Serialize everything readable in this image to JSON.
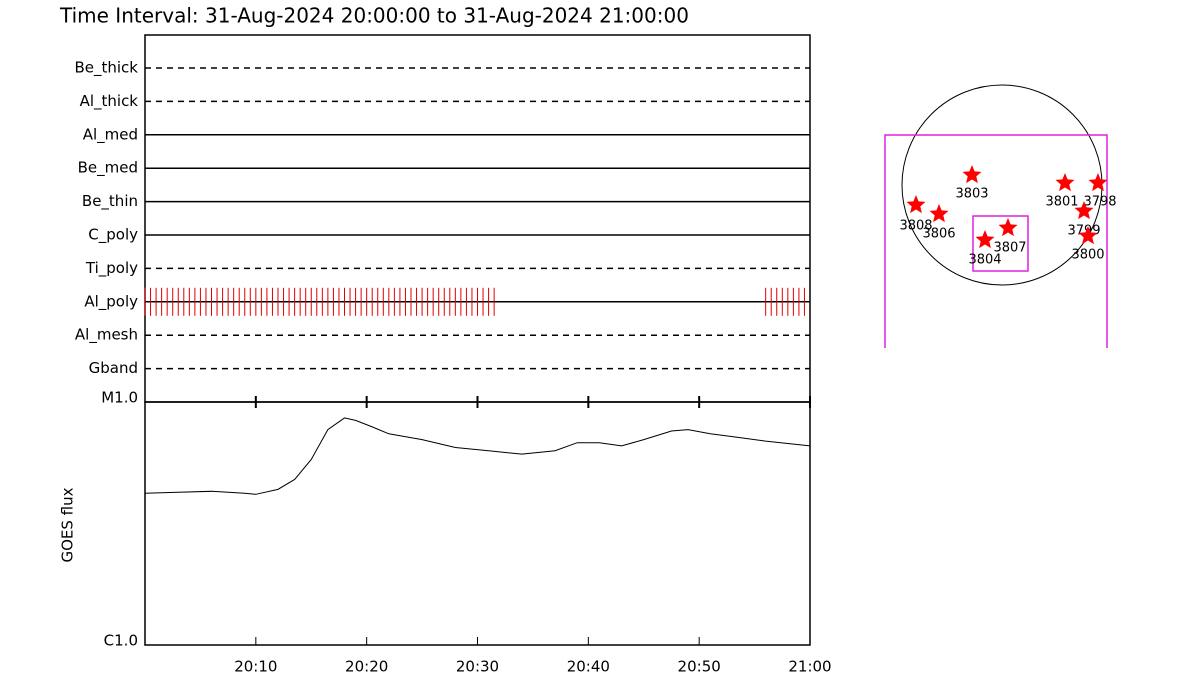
{
  "chart_data": [
    {
      "type": "timeline",
      "title": "Time Interval: 31-Aug-2024 20:00:00 to 31-Aug-2024 21:00:00",
      "categories": [
        "Be_thick",
        "Al_thick",
        "Al_med",
        "Be_med",
        "Be_thin",
        "C_poly",
        "Ti_poly",
        "Al_poly",
        "Al_mesh",
        "Gband"
      ],
      "line_styles": [
        "dashed",
        "dashed",
        "solid",
        "solid",
        "solid",
        "solid",
        "dashed",
        "solid",
        "dashed",
        "dashed"
      ],
      "color": "#e00000",
      "xlim": [
        0,
        60
      ],
      "observations": [
        [],
        [],
        [],
        [],
        [],
        [],
        [],
        [
          0,
          0.5,
          1,
          1.5,
          2,
          2.5,
          3,
          3.5,
          4,
          4.5,
          5,
          5.5,
          6,
          6.5,
          7,
          7.5,
          8,
          8.5,
          9,
          9.5,
          10,
          10.5,
          11,
          11.5,
          12,
          12.5,
          13,
          13.5,
          14,
          14.5,
          15,
          15.5,
          16,
          16.5,
          17,
          17.5,
          18,
          18.5,
          19,
          19.5,
          20,
          20.5,
          21,
          21.5,
          22,
          22.5,
          23,
          23.5,
          24,
          24.5,
          25,
          25.5,
          26,
          26.5,
          27,
          27.5,
          28,
          28.5,
          29,
          29.5,
          30,
          30.5,
          31,
          31.5,
          56,
          56.5,
          57,
          57.5,
          58,
          58.5,
          59,
          59.5
        ],
        [],
        []
      ]
    },
    {
      "type": "line",
      "ylabel": "GOES flux",
      "ylog": true,
      "x": [
        0,
        3,
        6,
        9,
        10,
        12,
        13.5,
        15,
        16.5,
        18,
        19,
        20.5,
        22,
        25,
        28,
        31,
        34,
        37,
        39,
        41,
        43,
        45,
        47.5,
        49,
        51,
        53,
        56,
        60
      ],
      "values": [
        4.21e-06,
        4.25e-06,
        4.29e-06,
        4.21e-06,
        4.17e-06,
        4.37e-06,
        4.8e-06,
        5.8e-06,
        7.7e-06,
        8.6e-06,
        8.4e-06,
        7.9e-06,
        7.4e-06,
        7e-06,
        6.5e-06,
        6.3e-06,
        6.1e-06,
        6.3e-06,
        6.8e-06,
        6.8e-06,
        6.6e-06,
        7e-06,
        7.6e-06,
        7.7e-06,
        7.4e-06,
        7.2e-06,
        6.9e-06,
        6.6e-06
      ],
      "color": "#000000",
      "xlim": [
        0,
        60
      ],
      "xticks": [
        {
          "value": 10,
          "label": "20:10"
        },
        {
          "value": 20,
          "label": "20:20"
        },
        {
          "value": 30,
          "label": "20:30"
        },
        {
          "value": 40,
          "label": "20:40"
        },
        {
          "value": 50,
          "label": "20:50"
        },
        {
          "value": 60,
          "label": "21:00"
        }
      ],
      "ylim": [
        1e-06,
        1e-05
      ],
      "yticks": [
        {
          "value": 1e-06,
          "label": "C1.0"
        },
        {
          "value": 1e-05,
          "label": "M1.0"
        }
      ]
    }
  ],
  "sun_map": {
    "regions": [
      "3803",
      "3808",
      "3806",
      "3804",
      "3807",
      "3801",
      "3798",
      "3799",
      "3800"
    ]
  }
}
